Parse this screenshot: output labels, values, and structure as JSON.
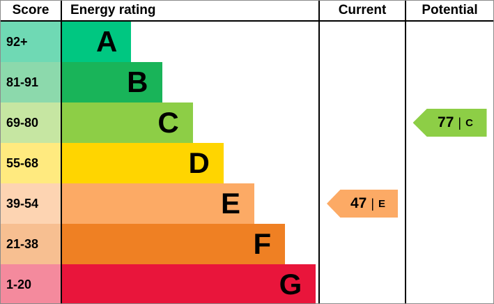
{
  "header": {
    "score": "Score",
    "energy_rating": "Energy rating",
    "current": "Current",
    "potential": "Potential"
  },
  "bands": [
    {
      "score_label": "92+",
      "letter": "A",
      "bar_color": "#00c781",
      "score_bg": "#6fd9b4",
      "width_pct": 27
    },
    {
      "score_label": "81-91",
      "letter": "B",
      "bar_color": "#19b459",
      "score_bg": "#8cd9ac",
      "width_pct": 39
    },
    {
      "score_label": "69-80",
      "letter": "C",
      "bar_color": "#8dce46",
      "score_bg": "#c6e6a2",
      "width_pct": 51
    },
    {
      "score_label": "55-68",
      "letter": "D",
      "bar_color": "#ffd500",
      "score_bg": "#ffea7f",
      "width_pct": 63
    },
    {
      "score_label": "39-54",
      "letter": "E",
      "bar_color": "#fcaa65",
      "score_bg": "#fdd4b2",
      "width_pct": 75
    },
    {
      "score_label": "21-38",
      "letter": "F",
      "bar_color": "#ef8023",
      "score_bg": "#f7bf91",
      "width_pct": 87
    },
    {
      "score_label": "1-20",
      "letter": "G",
      "bar_color": "#e9153b",
      "score_bg": "#f48a9d",
      "width_pct": 99
    }
  ],
  "current_arrow": {
    "value": "47",
    "divider": "|",
    "letter": "E",
    "color": "#fcaa65"
  },
  "potential_arrow": {
    "value": "77",
    "divider": "|",
    "letter": "C",
    "color": "#8dce46"
  },
  "chart_data": {
    "type": "bar",
    "title": "Energy rating",
    "columns": [
      "Score",
      "Energy rating",
      "Current",
      "Potential"
    ],
    "categories": [
      "A",
      "B",
      "C",
      "D",
      "E",
      "F",
      "G"
    ],
    "score_ranges": [
      "92+",
      "81-91",
      "69-80",
      "55-68",
      "39-54",
      "21-38",
      "1-20"
    ],
    "bar_lengths_pct": [
      27,
      39,
      51,
      63,
      75,
      87,
      99
    ],
    "band_colors": [
      "#00c781",
      "#19b459",
      "#8dce46",
      "#ffd500",
      "#fcaa65",
      "#ef8023",
      "#e9153b"
    ],
    "current": {
      "value": 47,
      "band": "E"
    },
    "potential": {
      "value": 77,
      "band": "C"
    },
    "legend_position": "none",
    "grid": false
  }
}
